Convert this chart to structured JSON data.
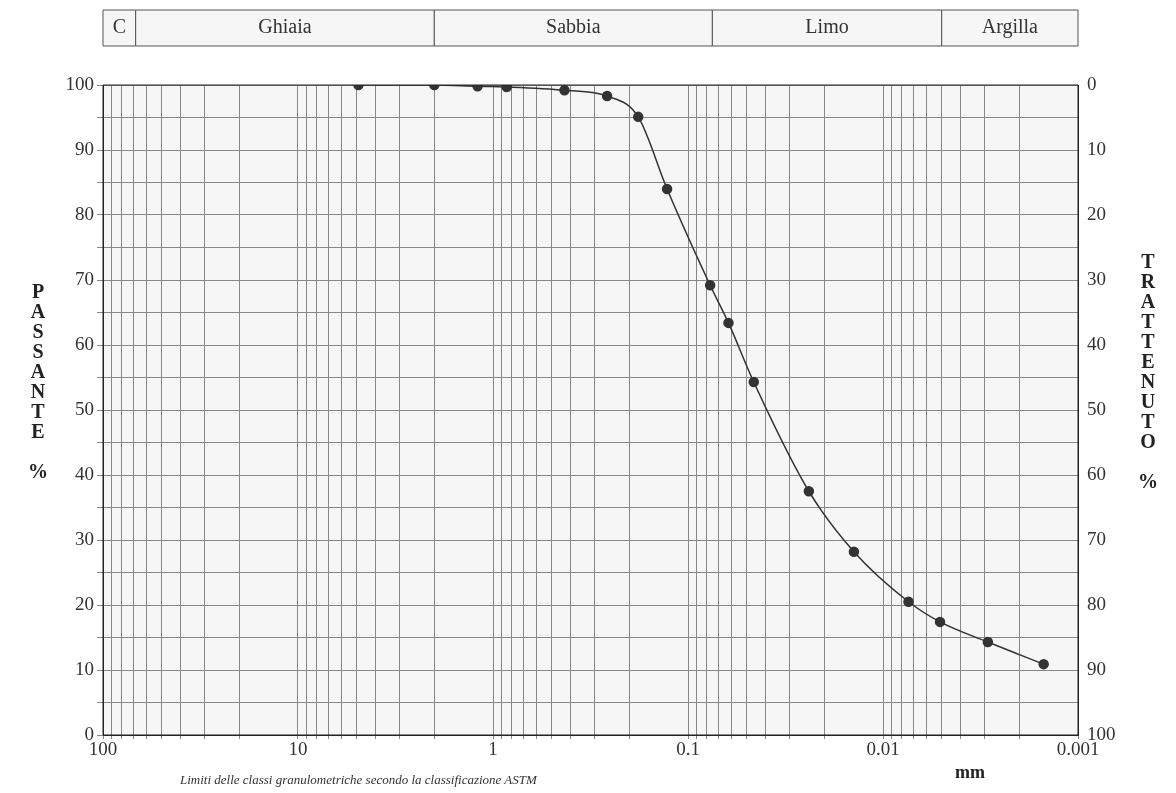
{
  "chart_data": {
    "type": "line",
    "xlabel": "mm",
    "ylabel": "PASSANTE %",
    "y2label": "TRATTENUTO %",
    "annotations": [
      "Limiti delle classi granulometriche secondo la classificazione ASTM"
    ],
    "log": "x",
    "grid": true,
    "legend": false,
    "marker": "circle",
    "line_style": "solid",
    "xlim": [
      100,
      0.001
    ],
    "xticks": [
      100,
      {
        "value": 90,
        "label": null
      },
      {
        "value": 80,
        "label": null
      },
      {
        "value": 70,
        "label": null
      },
      {
        "value": 60,
        "label": null
      },
      {
        "value": 50,
        "label": null
      },
      {
        "value": 40,
        "label": null
      },
      {
        "value": 30,
        "label": null
      },
      {
        "value": 20,
        "label": null
      },
      10,
      {
        "value": 9,
        "label": null
      },
      {
        "value": 8,
        "label": null
      },
      {
        "value": 7,
        "label": null
      },
      {
        "value": 6,
        "label": null
      },
      {
        "value": 5,
        "label": null
      },
      {
        "value": 4,
        "label": null
      },
      {
        "value": 3,
        "label": null
      },
      {
        "value": 2,
        "label": null
      },
      1,
      {
        "value": 0.9,
        "label": null
      },
      {
        "value": 0.8,
        "label": null
      },
      {
        "value": 0.7,
        "label": null
      },
      {
        "value": 0.6,
        "label": null
      },
      {
        "value": 0.5,
        "label": null
      },
      {
        "value": 0.4,
        "label": null
      },
      {
        "value": 0.3,
        "label": null
      },
      {
        "value": 0.2,
        "label": null
      },
      0.1,
      {
        "value": 0.09,
        "label": null
      },
      {
        "value": 0.08,
        "label": null
      },
      {
        "value": 0.07,
        "label": null
      },
      {
        "value": 0.06,
        "label": null
      },
      {
        "value": 0.05,
        "label": null
      },
      {
        "value": 0.04,
        "label": null
      },
      {
        "value": 0.03,
        "label": null
      },
      {
        "value": 0.02,
        "label": null
      },
      0.01,
      {
        "value": 0.009,
        "label": null
      },
      {
        "value": 0.008,
        "label": null
      },
      {
        "value": 0.007,
        "label": null
      },
      {
        "value": 0.006,
        "label": null
      },
      {
        "value": 0.005,
        "label": null
      },
      {
        "value": 0.004,
        "label": null
      },
      {
        "value": 0.003,
        "label": null
      },
      {
        "value": 0.002,
        "label": null
      },
      0.001
    ],
    "ylim": [
      0,
      100
    ],
    "yticks": [
      0,
      {
        "value": 5,
        "label": null
      },
      10,
      {
        "value": 15,
        "label": null
      },
      20,
      {
        "value": 25,
        "label": null
      },
      30,
      {
        "value": 35,
        "label": null
      },
      40,
      {
        "value": 45,
        "label": null
      },
      50,
      {
        "value": 55,
        "label": null
      },
      60,
      {
        "value": 65,
        "label": null
      },
      70,
      {
        "value": 75,
        "label": null
      },
      80,
      {
        "value": 85,
        "label": null
      },
      90,
      {
        "value": 95,
        "label": null
      },
      100
    ],
    "y2lim": [
      100,
      0
    ],
    "y2ticks": [
      0,
      10,
      20,
      30,
      40,
      50,
      60,
      70,
      80,
      90,
      100
    ],
    "bands": [
      {
        "axis": "x",
        "from": 100,
        "to": 68,
        "label": "C",
        "color": "#f6f6f6"
      },
      {
        "axis": "x",
        "from": 68,
        "to": 2,
        "label": "Ghiaia",
        "color": "#f6f6f6"
      },
      {
        "axis": "x",
        "from": 2,
        "to": 0.075,
        "label": "Sabbia",
        "color": "#f6f6f6"
      },
      {
        "axis": "x",
        "from": 0.075,
        "to": 0.005,
        "label": "Limo",
        "color": "#f6f6f6"
      },
      {
        "axis": "x",
        "from": 0.005,
        "to": 0.001,
        "label": "Argilla",
        "color": "#f6f6f6"
      }
    ],
    "series": [
      {
        "color": "#333333",
        "x": [
          4.9,
          2.0,
          1.2,
          0.85,
          0.43,
          0.26,
          0.18,
          0.128,
          0.077,
          0.062,
          0.046,
          0.024,
          0.0141,
          0.0074,
          0.0051,
          0.0029,
          0.0015
        ],
        "values": [
          100,
          100,
          99.8,
          99.7,
          99.2,
          98.3,
          95.1,
          84.0,
          69.2,
          63.4,
          54.3,
          37.5,
          28.2,
          20.5,
          17.4,
          14.3,
          10.9
        ]
      }
    ]
  }
}
